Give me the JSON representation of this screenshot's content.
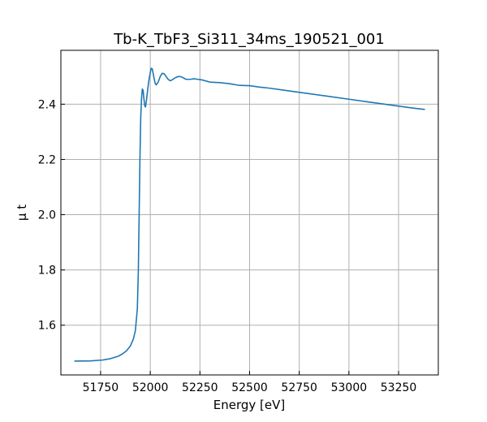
{
  "chart_data": {
    "type": "line",
    "title": "Tb-K_TbF3_Si311_34ms_190521_001",
    "xlabel": "Energy [eV]",
    "ylabel": "μ t",
    "xlim": [
      51550,
      53450
    ],
    "ylim": [
      1.42,
      2.595
    ],
    "grid": true,
    "x_ticks": [
      51750,
      52000,
      52250,
      52500,
      52750,
      53000,
      53250
    ],
    "y_ticks": [
      1.6,
      1.8,
      2.0,
      2.2,
      2.4
    ],
    "series": [
      {
        "color": "#1f77b4",
        "x": [
          51620,
          51700,
          51760,
          51800,
          51840,
          51860,
          51880,
          51900,
          51915,
          51925,
          51935,
          51940,
          51944,
          51948,
          51952,
          51956,
          51960,
          51964,
          51968,
          51972,
          51976,
          51980,
          51985,
          51990,
          51995,
          52000,
          52005,
          52010,
          52015,
          52020,
          52025,
          52030,
          52040,
          52050,
          52060,
          52070,
          52080,
          52090,
          52100,
          52110,
          52120,
          52130,
          52140,
          52150,
          52160,
          52180,
          52200,
          52220,
          52240,
          52260,
          52280,
          52300,
          52350,
          52400,
          52450,
          52500,
          52550,
          52600,
          52700,
          52800,
          52900,
          53000,
          53100,
          53200,
          53300,
          53380
        ],
        "y": [
          1.47,
          1.471,
          1.474,
          1.479,
          1.488,
          1.496,
          1.507,
          1.525,
          1.55,
          1.58,
          1.66,
          1.8,
          2.0,
          2.2,
          2.35,
          2.42,
          2.455,
          2.45,
          2.42,
          2.395,
          2.39,
          2.41,
          2.44,
          2.47,
          2.495,
          2.515,
          2.53,
          2.528,
          2.51,
          2.49,
          2.475,
          2.47,
          2.48,
          2.5,
          2.512,
          2.51,
          2.5,
          2.49,
          2.485,
          2.488,
          2.493,
          2.497,
          2.5,
          2.5,
          2.498,
          2.49,
          2.49,
          2.492,
          2.49,
          2.488,
          2.484,
          2.48,
          2.478,
          2.474,
          2.468,
          2.467,
          2.462,
          2.458,
          2.448,
          2.438,
          2.428,
          2.418,
          2.408,
          2.398,
          2.388,
          2.381
        ]
      }
    ]
  }
}
